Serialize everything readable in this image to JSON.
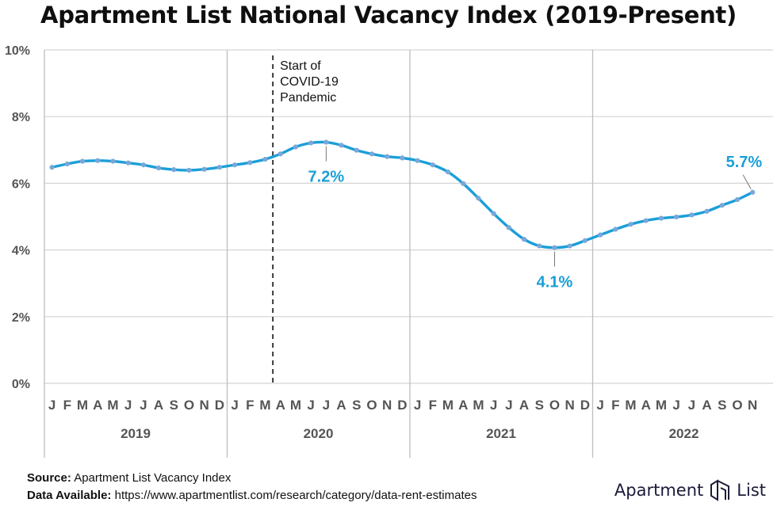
{
  "chart_data": {
    "type": "line",
    "title": "Apartment List National Vacancy Index (2019-Present)",
    "ylim": [
      0,
      10
    ],
    "y_ticks": [
      0,
      2,
      4,
      6,
      8,
      10
    ],
    "y_tick_labels": [
      "0%",
      "2%",
      "4%",
      "6%",
      "8%",
      "10%"
    ],
    "month_labels": [
      "J",
      "F",
      "M",
      "A",
      "M",
      "J",
      "J",
      "A",
      "S",
      "O",
      "N",
      "D"
    ],
    "years": [
      "2019",
      "2020",
      "2021",
      "2022"
    ],
    "series": [
      {
        "color": "#1a9fd8",
        "values": [
          6.48,
          6.58,
          6.66,
          6.68,
          6.66,
          6.61,
          6.55,
          6.46,
          6.41,
          6.39,
          6.42,
          6.48,
          6.55,
          6.62,
          6.72,
          6.88,
          7.09,
          7.21,
          7.23,
          7.14,
          6.99,
          6.88,
          6.8,
          6.76,
          6.68,
          6.55,
          6.34,
          5.99,
          5.55,
          5.09,
          4.67,
          4.32,
          4.12,
          4.07,
          4.12,
          4.28,
          4.45,
          4.62,
          4.77,
          4.88,
          4.95,
          4.99,
          5.05,
          5.16,
          5.34,
          5.51,
          5.73
        ]
      }
    ],
    "annotations": [
      {
        "text": "Start of COVID-19 Pandemic",
        "lines": [
          "Start of",
          "COVID-19",
          "Pandemic"
        ],
        "x_index": 14.5,
        "style": "dashed-vertical-line"
      },
      {
        "text": "7.2%",
        "x_index": 18,
        "y": 7.23
      },
      {
        "text": "4.1%",
        "x_index": 33,
        "y": 4.07
      },
      {
        "text": "5.7%",
        "x_index": 46,
        "y": 5.73
      }
    ],
    "grid": true,
    "line_color": "#1a9fd8",
    "point_color": "#7aa7d8",
    "annotation_color": "#1a9fd8"
  },
  "footer": {
    "source_label": "Source:",
    "source_text": "Apartment List Vacancy Index",
    "data_label": "Data Available:",
    "data_text": "https://www.apartmentlist.com/research/category/data-rent-estimates"
  },
  "brand": {
    "word1": "Apartment",
    "word2": "List",
    "icon": "apartment-list-logo-icon",
    "color": "#1b1b3a"
  }
}
